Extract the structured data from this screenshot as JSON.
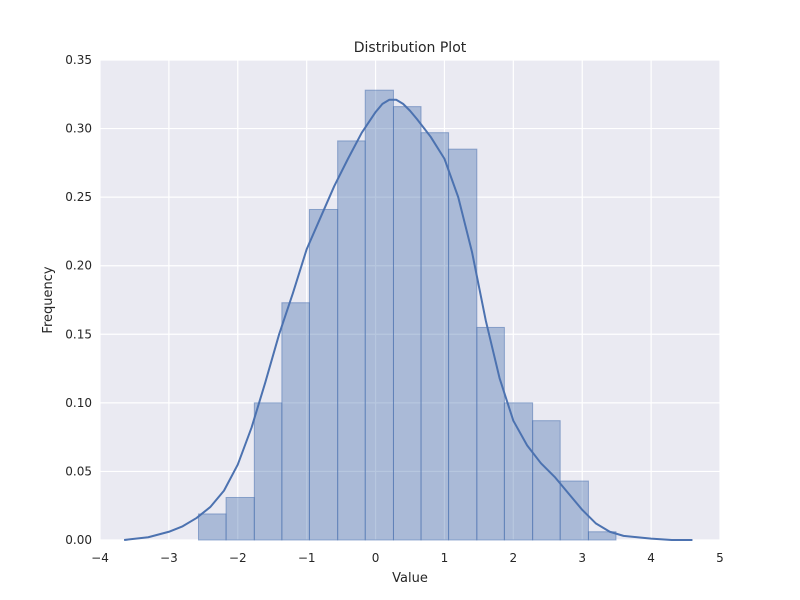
{
  "chart_data": {
    "type": "bar",
    "title": "Distribution Plot",
    "xlabel": "Value",
    "ylabel": "Frequency",
    "xlim": [
      -4,
      5
    ],
    "ylim": [
      0,
      0.35
    ],
    "xticks": [
      "−4",
      "−3",
      "−2",
      "−1",
      "0",
      "1",
      "2",
      "3",
      "4",
      "5"
    ],
    "xtick_values": [
      -4,
      -3,
      -2,
      -1,
      0,
      1,
      2,
      3,
      4,
      5
    ],
    "yticks": [
      "0.00",
      "0.05",
      "0.10",
      "0.15",
      "0.20",
      "0.25",
      "0.30",
      "0.35"
    ],
    "ytick_values": [
      0,
      0.05,
      0.1,
      0.15,
      0.2,
      0.25,
      0.3,
      0.35
    ],
    "grid": true,
    "bins": [
      {
        "x0": -2.57,
        "x1": -2.17,
        "value": 0.019
      },
      {
        "x0": -2.17,
        "x1": -1.76,
        "value": 0.031
      },
      {
        "x0": -1.76,
        "x1": -1.36,
        "value": 0.1
      },
      {
        "x0": -1.36,
        "x1": -0.96,
        "value": 0.173
      },
      {
        "x0": -0.96,
        "x1": -0.55,
        "value": 0.241
      },
      {
        "x0": -0.55,
        "x1": -0.15,
        "value": 0.291
      },
      {
        "x0": -0.15,
        "x1": 0.26,
        "value": 0.328
      },
      {
        "x0": 0.26,
        "x1": 0.66,
        "value": 0.316
      },
      {
        "x0": 0.66,
        "x1": 1.06,
        "value": 0.297
      },
      {
        "x0": 1.06,
        "x1": 1.47,
        "value": 0.285
      },
      {
        "x0": 1.47,
        "x1": 1.87,
        "value": 0.155
      },
      {
        "x0": 1.87,
        "x1": 2.28,
        "value": 0.1
      },
      {
        "x0": 2.28,
        "x1": 2.68,
        "value": 0.087
      },
      {
        "x0": 2.68,
        "x1": 3.09,
        "value": 0.043
      },
      {
        "x0": 3.09,
        "x1": 3.49,
        "value": 0.006
      }
    ],
    "kde": {
      "x": [
        -3.65,
        -3.3,
        -3.0,
        -2.8,
        -2.6,
        -2.4,
        -2.2,
        -2.0,
        -1.8,
        -1.6,
        -1.4,
        -1.2,
        -1.0,
        -0.8,
        -0.6,
        -0.4,
        -0.2,
        0.0,
        0.1,
        0.2,
        0.3,
        0.4,
        0.5,
        0.6,
        0.8,
        1.0,
        1.2,
        1.4,
        1.6,
        1.8,
        2.0,
        2.2,
        2.4,
        2.6,
        2.8,
        3.0,
        3.2,
        3.4,
        3.6,
        3.8,
        4.0,
        4.3,
        4.6
      ],
      "y": [
        0.0,
        0.002,
        0.006,
        0.01,
        0.016,
        0.024,
        0.036,
        0.055,
        0.082,
        0.115,
        0.15,
        0.18,
        0.212,
        0.235,
        0.258,
        0.278,
        0.297,
        0.312,
        0.318,
        0.321,
        0.321,
        0.318,
        0.313,
        0.307,
        0.294,
        0.278,
        0.25,
        0.21,
        0.16,
        0.118,
        0.087,
        0.069,
        0.056,
        0.046,
        0.034,
        0.022,
        0.012,
        0.006,
        0.003,
        0.002,
        0.001,
        0.0,
        0.0
      ]
    },
    "colors": {
      "background": "#EAEAF2",
      "grid": "#FFFFFF",
      "bar_fill": "#4C72B0",
      "bar_edge": "#4C72B0",
      "line": "#4C72B0",
      "text": "#262626"
    }
  }
}
